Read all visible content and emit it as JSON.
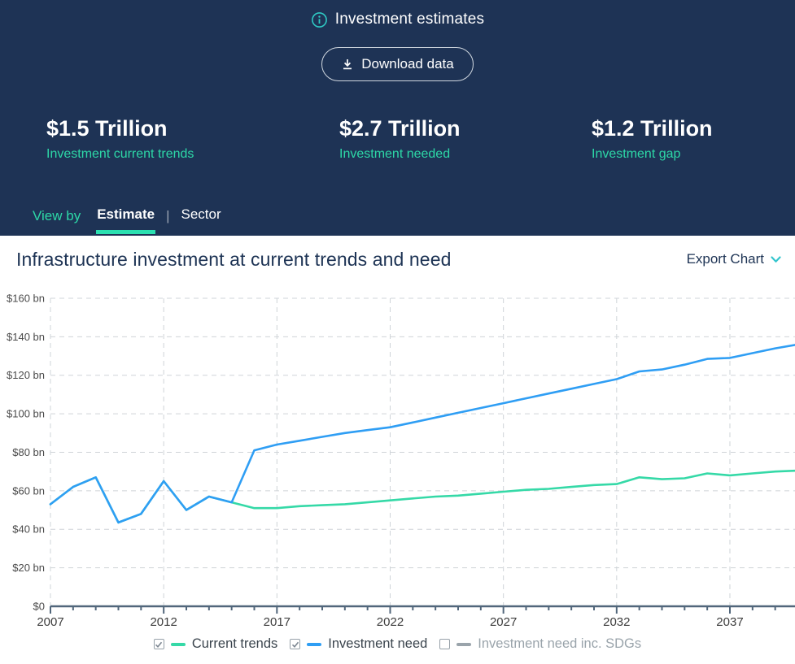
{
  "colors": {
    "navy": "#1e3355",
    "accent_teal": "#2dd8a7",
    "accent_cyan": "#2fc9c4",
    "line_teal": "#35d9a7",
    "line_blue": "#2f9ef4",
    "muted_gray": "#9aa4ab",
    "grid_gray": "#cfd4d8"
  },
  "icons": {
    "header_info": "info-icon",
    "download": "download-icon",
    "export_chevron": "chevron-down-icon",
    "legend_checked": "checkbox-checked-icon",
    "legend_unchecked": "checkbox-unchecked-icon"
  },
  "header": {
    "title": "Investment estimates",
    "download_button": "Download data",
    "stats": [
      {
        "value": "$1.5 Trillion",
        "label": "Investment current trends"
      },
      {
        "value": "$2.7 Trillion",
        "label": "Investment needed"
      },
      {
        "value": "$1.2 Trillion",
        "label": "Investment gap"
      }
    ],
    "view_by": {
      "label": "View by",
      "separator": "|",
      "tabs": [
        {
          "label": "Estimate",
          "active": true
        },
        {
          "label": "Sector",
          "active": false
        }
      ]
    }
  },
  "chart_panel": {
    "title": "Infrastructure investment at current trends and need",
    "export_label": "Export Chart"
  },
  "chart_data": {
    "type": "line",
    "title": "Infrastructure investment at current trends and need",
    "ylim": [
      0,
      160
    ],
    "grid": true,
    "legend_position": "bottom",
    "x": [
      2007,
      2008,
      2009,
      2010,
      2011,
      2012,
      2013,
      2014,
      2015,
      2016,
      2017,
      2018,
      2019,
      2020,
      2021,
      2022,
      2023,
      2024,
      2025,
      2026,
      2027,
      2028,
      2029,
      2030,
      2031,
      2032,
      2033,
      2034,
      2035,
      2036,
      2037,
      2038,
      2039,
      2040
    ],
    "x_tick_years": [
      2007,
      2012,
      2017,
      2022,
      2027,
      2032,
      2037
    ],
    "y_ticks": [
      {
        "value": 0,
        "label": "$0"
      },
      {
        "value": 20,
        "label": "$20 bn"
      },
      {
        "value": 40,
        "label": "$40 bn"
      },
      {
        "value": 60,
        "label": "$60 bn"
      },
      {
        "value": 80,
        "label": "$80 bn"
      },
      {
        "value": 100,
        "label": "$100 bn"
      },
      {
        "value": 120,
        "label": "$120 bn"
      },
      {
        "value": 140,
        "label": "$140 bn"
      },
      {
        "value": 160,
        "label": "$160 bn"
      }
    ],
    "series": [
      {
        "name": "Current trends",
        "color": "#35d9a7",
        "checked": true,
        "values": [
          53,
          62,
          67,
          43.5,
          48,
          65,
          50,
          57,
          54,
          51,
          51,
          52,
          52.5,
          53,
          54,
          55,
          56,
          57,
          57.5,
          58.5,
          59.5,
          60.5,
          61,
          62,
          63,
          63.5,
          67,
          66,
          66.5,
          69,
          68,
          69,
          70,
          70.5
        ]
      },
      {
        "name": "Investment need",
        "color": "#2f9ef4",
        "checked": true,
        "values": [
          53,
          62,
          67,
          43.5,
          48,
          65,
          50,
          57,
          54,
          81,
          84,
          86,
          88,
          90,
          91.5,
          93,
          95.5,
          98,
          100.5,
          103,
          105.5,
          108,
          110.5,
          113,
          115.5,
          118,
          122,
          123,
          125.5,
          128.5,
          129,
          131.5,
          134,
          136
        ]
      },
      {
        "name": "Investment need inc. SDGs",
        "color": "#9aa4ab",
        "checked": false,
        "values": []
      }
    ]
  }
}
